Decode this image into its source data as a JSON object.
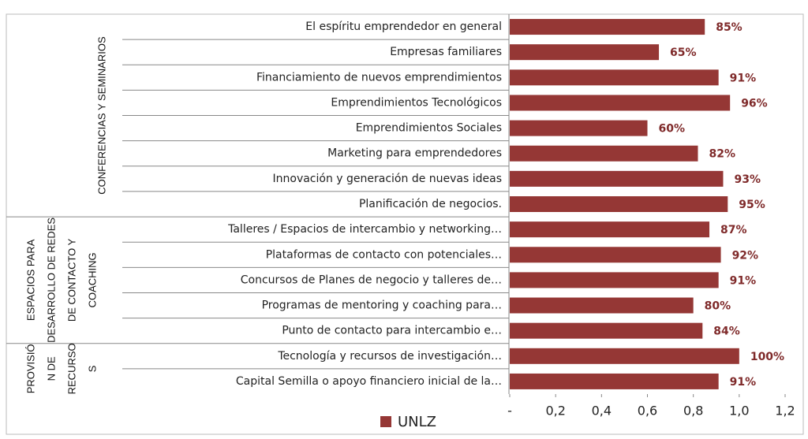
{
  "chart_data": {
    "type": "bar",
    "orientation": "horizontal",
    "color": "#953735",
    "label_color": "#7f2a2a",
    "groups": [
      {
        "lines": [
          "CONFERENCIAS Y SEMINARIOS"
        ],
        "categories": [
          "El espíritu emprendedor en general",
          "Empresas familiares",
          "Financiamiento de nuevos emprendimientos",
          "Emprendimientos Tecnológicos",
          "Emprendimientos Sociales",
          "Marketing para emprendedores",
          "Innovación y generación de nuevas ideas",
          "Planificación de negocios."
        ],
        "values": [
          0.85,
          0.65,
          0.91,
          0.96,
          0.6,
          0.82,
          0.93,
          0.95
        ],
        "value_labels": [
          "85%",
          "65%",
          "91%",
          "96%",
          "60%",
          "82%",
          "93%",
          "95%"
        ]
      },
      {
        "lines": [
          "ESPACIOS PARA",
          "DESARROLLO DE REDES",
          "DE CONTACTO Y",
          "COACHING"
        ],
        "categories": [
          "Talleres / Espacios de intercambio y networking…",
          "Plataformas de contacto con potenciales…",
          "Concursos de Planes de negocio y talleres de…",
          "Programas de mentoring y coaching para…",
          "Punto de contacto para intercambio e…"
        ],
        "values": [
          0.87,
          0.92,
          0.91,
          0.8,
          0.84
        ],
        "value_labels": [
          "87%",
          "92%",
          "91%",
          "80%",
          "84%"
        ]
      },
      {
        "lines": [
          "PROVISIÓ",
          "N DE",
          "RECURSO",
          "S"
        ],
        "categories": [
          "Tecnología y recursos de investigación…",
          "Capital Semilla o apoyo financiero inicial de la…"
        ],
        "values": [
          1.0,
          0.91
        ],
        "value_labels": [
          "100%",
          "91%"
        ]
      }
    ],
    "series_name": "UNLZ",
    "xlim": [
      0,
      1.2
    ],
    "xticks": [
      {
        "value": 0,
        "label": "-"
      },
      {
        "value": 0.2,
        "label": "0,2"
      },
      {
        "value": 0.4,
        "label": "0,4"
      },
      {
        "value": 0.6,
        "label": "0,6"
      },
      {
        "value": 0.8,
        "label": "0,8"
      },
      {
        "value": 1.0,
        "label": "1,0"
      },
      {
        "value": 1.2,
        "label": "1,2"
      }
    ]
  }
}
